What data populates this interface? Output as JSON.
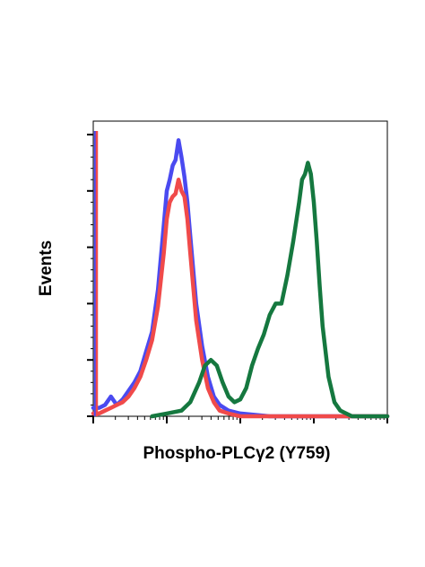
{
  "chart_data": {
    "type": "line",
    "title": "",
    "xlabel": "Phospho-PLCγ2 (Y759)",
    "ylabel": "Events",
    "x_scale": "log (flow cytometry, 4 decades)",
    "xlim": [
      0,
      100
    ],
    "ylim": [
      0,
      100
    ],
    "tick_labels_shown": false,
    "legend": "none",
    "grid": false,
    "series": [
      {
        "color": "#4a4af0",
        "x": [
          0,
          2,
          4,
          6,
          8,
          10,
          12,
          14,
          16,
          18,
          20,
          22,
          24,
          25,
          26,
          27,
          28,
          29,
          30,
          31,
          32,
          33,
          34,
          35,
          37,
          39,
          41,
          43,
          46,
          50,
          60,
          80,
          100
        ],
        "y": [
          3,
          3,
          4,
          7,
          4,
          6,
          9,
          12,
          16,
          23,
          30,
          45,
          68,
          80,
          84,
          89,
          91,
          98,
          92,
          85,
          76,
          64,
          52,
          40,
          25,
          14,
          7,
          4,
          2,
          1,
          0,
          0,
          0
        ]
      },
      {
        "color": "#f04a4a",
        "x": [
          0,
          2,
          4,
          6,
          8,
          10,
          12,
          14,
          16,
          18,
          20,
          22,
          24,
          25,
          26,
          27,
          28,
          29,
          30,
          31,
          32,
          33,
          34,
          35,
          37,
          39,
          41,
          43,
          46,
          50,
          60,
          80,
          100
        ],
        "y": [
          1,
          1,
          2,
          3,
          4,
          5,
          7,
          10,
          14,
          20,
          27,
          39,
          58,
          70,
          76,
          78,
          79,
          84,
          80,
          78,
          70,
          58,
          46,
          34,
          20,
          10,
          5,
          2,
          1,
          0,
          0,
          0,
          0
        ]
      },
      {
        "color": "#15783f",
        "x": [
          20,
          25,
          30,
          33,
          36,
          38,
          40,
          42,
          44,
          46,
          48,
          50,
          52,
          54,
          56,
          58,
          60,
          62,
          64,
          66,
          68,
          70,
          71,
          72,
          73,
          74,
          75,
          76,
          77,
          78,
          80,
          82,
          84,
          86,
          88,
          92,
          100
        ],
        "y": [
          0,
          1,
          2,
          5,
          12,
          18,
          20,
          18,
          12,
          7,
          5,
          6,
          10,
          18,
          24,
          29,
          36,
          40,
          40,
          50,
          62,
          76,
          84,
          86,
          90,
          86,
          76,
          62,
          46,
          32,
          14,
          5,
          2,
          1,
          0,
          0,
          0
        ]
      }
    ]
  }
}
